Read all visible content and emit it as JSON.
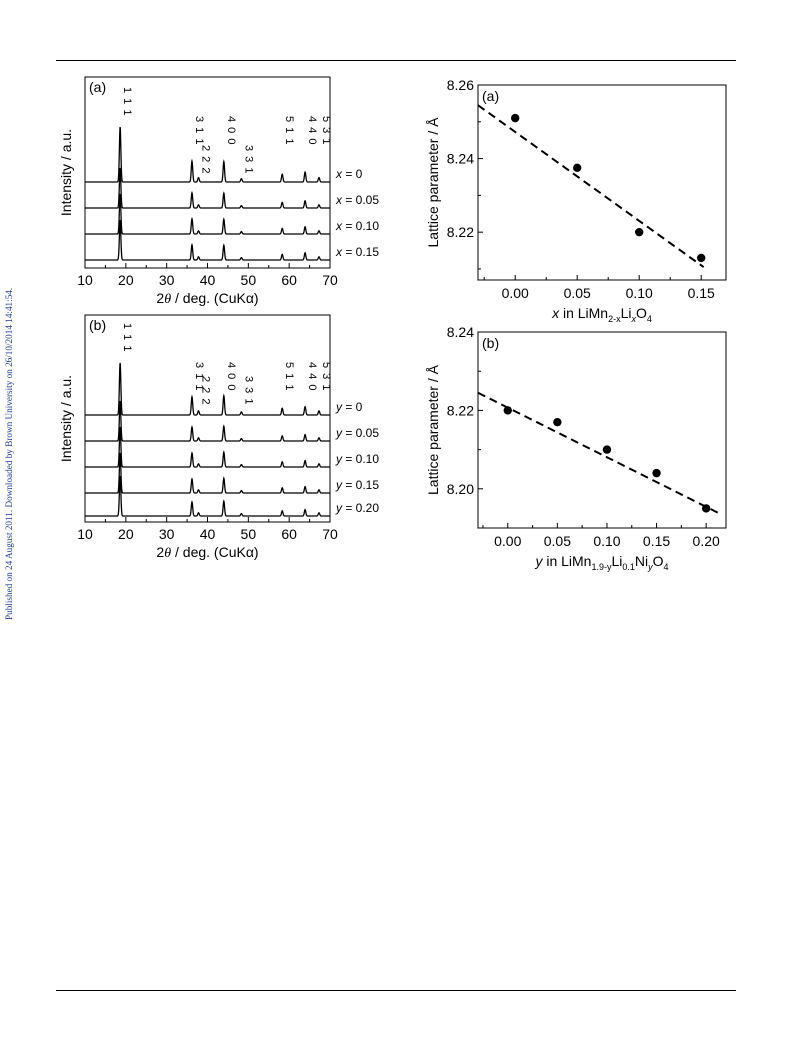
{
  "side_note": "Published on 24 August 2011. Downloaded by Brown University on 26/10/2014 14:41:54.",
  "chart_data": [
    {
      "type": "line",
      "panel_label": "(a)",
      "xlabel": "2θ / deg. (CuKα)",
      "xlabel_parts": {
        "theta": "2θ",
        "rest": " / deg. (CuKα)"
      },
      "ylabel": "Intensity / a.u.",
      "xlim": [
        10,
        70
      ],
      "x_ticks": [
        10,
        20,
        30,
        40,
        50,
        60,
        70
      ],
      "x_tick_labels": [
        "10",
        "20",
        "30",
        "40",
        "50",
        "60",
        "70"
      ],
      "peak_labels": [
        {
          "text": "1 1 1",
          "x": 18.6
        },
        {
          "text": "3 1 1",
          "x": 36.2
        },
        {
          "text": "2 2 2",
          "x": 37.8
        },
        {
          "text": "4 0 0",
          "x": 44.0
        },
        {
          "text": "3 3 1",
          "x": 48.3
        },
        {
          "text": "5 1 1",
          "x": 58.3
        },
        {
          "text": "4 4 0",
          "x": 63.9
        },
        {
          "text": "5 3 1",
          "x": 67.3
        }
      ],
      "peaks": [
        {
          "x": 18.6,
          "h": 1.0
        },
        {
          "x": 36.2,
          "h": 0.38
        },
        {
          "x": 37.8,
          "h": 0.08
        },
        {
          "x": 44.0,
          "h": 0.37
        },
        {
          "x": 48.3,
          "h": 0.06
        },
        {
          "x": 58.3,
          "h": 0.14
        },
        {
          "x": 63.9,
          "h": 0.18
        },
        {
          "x": 67.3,
          "h": 0.08
        }
      ],
      "series": [
        {
          "var": "x",
          "value": "0",
          "label_parts": [
            "x",
            " = 0"
          ]
        },
        {
          "var": "x",
          "value": "0.05",
          "label_parts": [
            "x",
            " = 0.05"
          ]
        },
        {
          "var": "x",
          "value": "0.10",
          "label_parts": [
            "x",
            " = 0.10"
          ]
        },
        {
          "var": "x",
          "value": "0.15",
          "label_parts": [
            "x",
            " = 0.15"
          ]
        }
      ]
    },
    {
      "type": "scatter",
      "panel_label": "(a)",
      "xlabel": "x in LiMn2-xLixO4",
      "ylabel": "Lattice parameter / Å",
      "xlim": [
        -0.03,
        0.17
      ],
      "ylim": [
        8.207,
        8.26
      ],
      "x_ticks": [
        0.0,
        0.05,
        0.1,
        0.15
      ],
      "x_tick_labels": [
        "0.00",
        "0.05",
        "0.10",
        "0.15"
      ],
      "y_ticks": [
        8.22,
        8.24,
        8.26
      ],
      "y_tick_labels": [
        "8.22",
        "8.24",
        "8.26"
      ],
      "x": [
        0.0,
        0.05,
        0.1,
        0.15
      ],
      "y": [
        8.251,
        8.2375,
        8.22,
        8.213
      ],
      "fit_line": {
        "x": [
          -0.03,
          0.152
        ],
        "y": [
          8.2545,
          8.2105
        ]
      }
    },
    {
      "type": "line",
      "panel_label": "(b)",
      "xlabel": "2θ / deg. (CuKα)",
      "xlabel_parts": {
        "theta": "2θ",
        "rest": " / deg. (CuKα)"
      },
      "ylabel": "Intensity / a.u.",
      "xlim": [
        10,
        70
      ],
      "x_ticks": [
        10,
        20,
        30,
        40,
        50,
        60,
        70
      ],
      "x_tick_labels": [
        "10",
        "20",
        "30",
        "40",
        "50",
        "60",
        "70"
      ],
      "peak_labels": [
        {
          "text": "1 1 1",
          "x": 18.6
        },
        {
          "text": "3 1 1",
          "x": 36.2
        },
        {
          "text": "2 2 2",
          "x": 37.8
        },
        {
          "text": "4 0 0",
          "x": 44.0
        },
        {
          "text": "3 3 1",
          "x": 48.3
        },
        {
          "text": "5 1 1",
          "x": 58.3
        },
        {
          "text": "4 4 0",
          "x": 63.9
        },
        {
          "text": "5 3 1",
          "x": 67.3
        }
      ],
      "peaks": [
        {
          "x": 18.6,
          "h": 1.0
        },
        {
          "x": 36.2,
          "h": 0.35
        },
        {
          "x": 37.8,
          "h": 0.08
        },
        {
          "x": 44.0,
          "h": 0.37
        },
        {
          "x": 48.3,
          "h": 0.06
        },
        {
          "x": 58.3,
          "h": 0.13
        },
        {
          "x": 63.9,
          "h": 0.16
        },
        {
          "x": 67.3,
          "h": 0.08
        }
      ],
      "series": [
        {
          "var": "y",
          "value": "0",
          "label_parts": [
            "y",
            " = 0"
          ]
        },
        {
          "var": "y",
          "value": "0.05",
          "label_parts": [
            "y",
            " = 0.05"
          ]
        },
        {
          "var": "y",
          "value": "0.10",
          "label_parts": [
            "y",
            " = 0.10"
          ]
        },
        {
          "var": "y",
          "value": "0.15",
          "label_parts": [
            "y",
            " = 0.15"
          ]
        },
        {
          "var": "y",
          "value": "0.20",
          "label_parts": [
            "y",
            " = 0.20"
          ]
        }
      ]
    },
    {
      "type": "scatter",
      "panel_label": "(b)",
      "xlabel": "y in LiMn1.9-yLi0.1NiyO4",
      "ylabel": "Lattice parameter / Å",
      "xlim": [
        -0.03,
        0.22
      ],
      "ylim": [
        8.19,
        8.24
      ],
      "x_ticks": [
        0.0,
        0.05,
        0.1,
        0.15,
        0.2
      ],
      "x_tick_labels": [
        "0.00",
        "0.05",
        "0.10",
        "0.15",
        "0.20"
      ],
      "y_ticks": [
        8.2,
        8.22,
        8.24
      ],
      "y_tick_labels": [
        "8.20",
        "8.22",
        "8.24"
      ],
      "x": [
        0.0,
        0.05,
        0.1,
        0.15,
        0.2
      ],
      "y": [
        8.22,
        8.217,
        8.21,
        8.204,
        8.195
      ],
      "fit_line": {
        "x": [
          -0.03,
          0.215
        ],
        "y": [
          8.2245,
          8.1935
        ]
      }
    }
  ]
}
